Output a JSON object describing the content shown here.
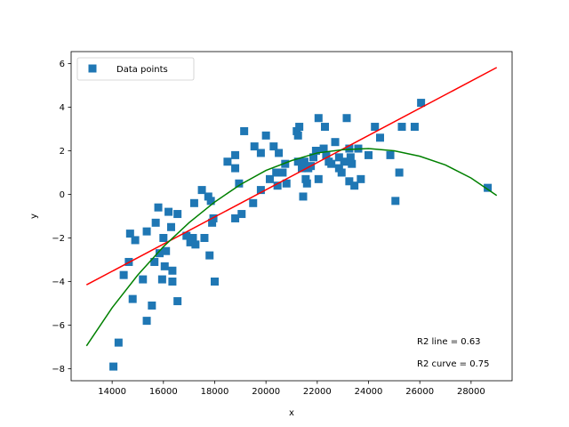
{
  "chart_data": {
    "type": "scatter",
    "title": "",
    "xlabel": "x",
    "ylabel": "y",
    "xlim": [
      12400,
      29600
    ],
    "ylim": [
      -8.55,
      6.55
    ],
    "xticks": [
      14000,
      16000,
      18000,
      20000,
      22000,
      24000,
      26000,
      28000
    ],
    "yticks": [
      -8,
      -6,
      -4,
      -2,
      0,
      2,
      4,
      6
    ],
    "grid": false,
    "legend": {
      "placement": "top-left",
      "entries": [
        "Data points"
      ]
    },
    "series": [
      {
        "name": "Data points",
        "kind": "scatter",
        "marker": "square",
        "color": "#1f77b4",
        "points": [
          [
            14050,
            -7.9
          ],
          [
            14250,
            -6.8
          ],
          [
            14450,
            -3.7
          ],
          [
            14650,
            -3.1
          ],
          [
            14700,
            -1.8
          ],
          [
            14800,
            -4.8
          ],
          [
            14900,
            -2.1
          ],
          [
            15200,
            -3.9
          ],
          [
            15350,
            -5.8
          ],
          [
            15350,
            -1.7
          ],
          [
            15550,
            -5.1
          ],
          [
            15650,
            -3.1
          ],
          [
            15700,
            -1.3
          ],
          [
            15800,
            -0.6
          ],
          [
            15850,
            -2.7
          ],
          [
            15950,
            -3.9
          ],
          [
            16000,
            -2.0
          ],
          [
            16050,
            -3.3
          ],
          [
            16100,
            -2.6
          ],
          [
            16200,
            -0.8
          ],
          [
            16300,
            -1.5
          ],
          [
            16350,
            -4.0
          ],
          [
            16350,
            -3.5
          ],
          [
            16550,
            -4.9
          ],
          [
            16550,
            -0.9
          ],
          [
            16900,
            -1.9
          ],
          [
            17050,
            -2.2
          ],
          [
            17150,
            -2.0
          ],
          [
            17200,
            -0.4
          ],
          [
            17250,
            -2.3
          ],
          [
            17500,
            0.2
          ],
          [
            17600,
            -2.0
          ],
          [
            17750,
            -0.1
          ],
          [
            17800,
            -2.8
          ],
          [
            17850,
            -0.3
          ],
          [
            17900,
            -1.3
          ],
          [
            17950,
            -1.1
          ],
          [
            18000,
            -4.0
          ],
          [
            18500,
            1.5
          ],
          [
            18800,
            1.8
          ],
          [
            18800,
            1.2
          ],
          [
            18800,
            -1.1
          ],
          [
            18950,
            0.5
          ],
          [
            19050,
            -0.9
          ],
          [
            19150,
            2.9
          ],
          [
            19500,
            -0.4
          ],
          [
            19550,
            2.2
          ],
          [
            19800,
            0.2
          ],
          [
            19800,
            1.9
          ],
          [
            20000,
            2.7
          ],
          [
            20150,
            0.7
          ],
          [
            20300,
            2.2
          ],
          [
            20400,
            1.0
          ],
          [
            20450,
            0.4
          ],
          [
            20500,
            1.9
          ],
          [
            20650,
            1.0
          ],
          [
            20750,
            1.4
          ],
          [
            20800,
            0.5
          ],
          [
            21200,
            2.9
          ],
          [
            21250,
            2.7
          ],
          [
            21250,
            1.5
          ],
          [
            21300,
            3.1
          ],
          [
            21400,
            1.2
          ],
          [
            21450,
            -0.1
          ],
          [
            21500,
            1.5
          ],
          [
            21550,
            0.7
          ],
          [
            21600,
            0.5
          ],
          [
            21650,
            1.2
          ],
          [
            21750,
            1.3
          ],
          [
            21850,
            1.7
          ],
          [
            21950,
            2.0
          ],
          [
            22050,
            0.7
          ],
          [
            22050,
            3.5
          ],
          [
            22250,
            2.1
          ],
          [
            22300,
            3.1
          ],
          [
            22350,
            1.8
          ],
          [
            22450,
            1.5
          ],
          [
            22550,
            1.4
          ],
          [
            22700,
            2.4
          ],
          [
            22850,
            1.2
          ],
          [
            22850,
            1.7
          ],
          [
            22950,
            1.0
          ],
          [
            23050,
            1.5
          ],
          [
            23150,
            3.5
          ],
          [
            23250,
            2.1
          ],
          [
            23250,
            0.6
          ],
          [
            23300,
            1.7
          ],
          [
            23350,
            1.4
          ],
          [
            23450,
            0.4
          ],
          [
            23600,
            2.1
          ],
          [
            23700,
            0.7
          ],
          [
            24000,
            1.8
          ],
          [
            24250,
            3.1
          ],
          [
            24450,
            2.6
          ],
          [
            24850,
            1.8
          ],
          [
            25050,
            -0.3
          ],
          [
            25200,
            1.0
          ],
          [
            25300,
            3.1
          ],
          [
            25800,
            3.1
          ],
          [
            26050,
            4.2
          ],
          [
            28650,
            0.3
          ]
        ]
      },
      {
        "name": "",
        "kind": "line",
        "color": "#ff0000",
        "x": [
          13000,
          29000
        ],
        "y": [
          -4.15,
          5.82
        ]
      },
      {
        "name": "",
        "kind": "line",
        "color": "#008000",
        "model": "quadratic",
        "x": [
          13000,
          14000,
          15000,
          16000,
          17000,
          18000,
          19000,
          20000,
          21000,
          22000,
          23000,
          24000,
          25000,
          26000,
          27000,
          28000,
          29000
        ],
        "y": [
          -6.95,
          -5.2,
          -3.7,
          -2.4,
          -1.3,
          -0.35,
          0.45,
          1.1,
          1.55,
          1.9,
          2.05,
          2.1,
          2.0,
          1.75,
          1.35,
          0.75,
          -0.05
        ]
      }
    ],
    "annotations": [
      "R2 line = 0.63",
      "R2 curve = 0.75"
    ]
  }
}
